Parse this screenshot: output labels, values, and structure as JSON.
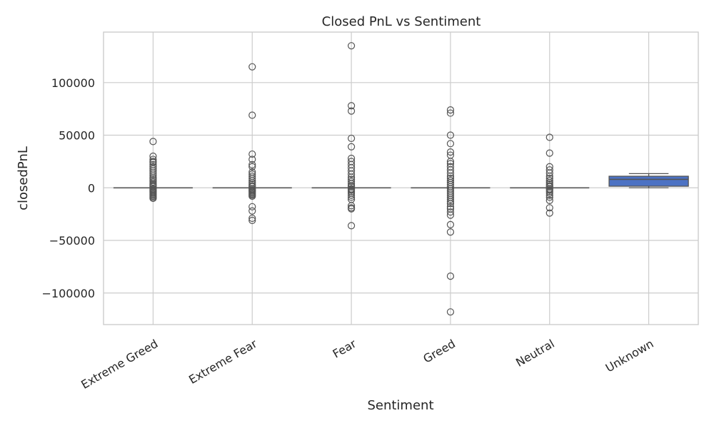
{
  "chart_data": {
    "type": "box",
    "title": "Closed PnL vs Sentiment",
    "xlabel": "Sentiment",
    "ylabel": "closedPnL",
    "ylim": [
      -130000,
      148000
    ],
    "yticks": [
      {
        "value": 100000,
        "label": "100000"
      },
      {
        "value": 50000,
        "label": "50000"
      },
      {
        "value": 0,
        "label": "0"
      },
      {
        "value": -50000,
        "label": "−50000"
      },
      {
        "value": -100000,
        "label": "−100000"
      }
    ],
    "grid": true,
    "box_color": "#4c72c4",
    "line_color": "#555555",
    "grid_color": "#cccccc",
    "categories": [
      "Extreme Greed",
      "Extreme Fear",
      "Fear",
      "Greed",
      "Neutral",
      "Unknown"
    ],
    "boxes": [
      {
        "category": "Extreme Greed",
        "q1": 0,
        "median": 0,
        "q3": 0,
        "whisker_low": 0,
        "whisker_high": 0,
        "outliers": [
          44000,
          30000,
          27000,
          25000,
          24000,
          22000,
          20000,
          18000,
          16000,
          14000,
          12000,
          10000,
          8500,
          7000,
          5500,
          4000,
          3000,
          2000,
          1000,
          -1000,
          -2000,
          -3000,
          -4000,
          -5000,
          -6000,
          -7000,
          -8000,
          -9000,
          -10000
        ]
      },
      {
        "category": "Extreme Fear",
        "q1": 0,
        "median": 0,
        "q3": 0,
        "whisker_low": 0,
        "whisker_high": 0,
        "outliers": [
          115000,
          69000,
          32000,
          27000,
          22000,
          20000,
          15000,
          13000,
          11000,
          9000,
          7000,
          5000,
          3500,
          2000,
          1000,
          -1000,
          -2000,
          -3000,
          -4000,
          -5000,
          -6000,
          -7000,
          -8000,
          -18000,
          -22000,
          -29000,
          -31000
        ]
      },
      {
        "category": "Fear",
        "q1": 0,
        "median": 0,
        "q3": 0,
        "whisker_low": 0,
        "whisker_high": 0,
        "outliers": [
          135000,
          78000,
          73000,
          47000,
          39000,
          28000,
          25000,
          22000,
          19000,
          16000,
          13000,
          10000,
          8000,
          6000,
          4000,
          2000,
          1000,
          -1000,
          -2000,
          -3500,
          -5000,
          -7000,
          -9000,
          -11000,
          -17000,
          -19000,
          -20000,
          -36000
        ]
      },
      {
        "category": "Greed",
        "q1": 0,
        "median": 0,
        "q3": 0,
        "whisker_low": 0,
        "whisker_high": 0,
        "outliers": [
          74000,
          71000,
          50000,
          42000,
          34000,
          31000,
          25000,
          23000,
          20000,
          17000,
          14000,
          11000,
          9000,
          7000,
          5000,
          3000,
          1000,
          -1000,
          -3000,
          -5000,
          -7000,
          -9000,
          -11000,
          -13000,
          -15000,
          -18000,
          -20000,
          -23000,
          -26000,
          -35000,
          -42000,
          -84000,
          -118000
        ]
      },
      {
        "category": "Neutral",
        "q1": 0,
        "median": 0,
        "q3": 0,
        "whisker_low": 0,
        "whisker_high": 0,
        "outliers": [
          48000,
          33000,
          20000,
          17000,
          14000,
          11000,
          9000,
          7000,
          5000,
          3500,
          2000,
          1000,
          -1000,
          -2000,
          -3500,
          -5000,
          -7000,
          -9000,
          -12000,
          -19000,
          -24000
        ]
      },
      {
        "category": "Unknown",
        "q1": 1500,
        "median": 8000,
        "q3": 11000,
        "whisker_low": 0,
        "whisker_high": 13500,
        "outliers": []
      }
    ]
  }
}
